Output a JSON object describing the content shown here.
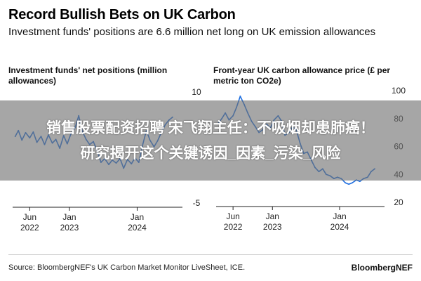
{
  "header": {
    "title": "Record Bullish Bets on UK Carbon",
    "subtitle": "Investment funds' positions are 6.6 million net long on UK emission allowances"
  },
  "overlay": {
    "line1": "销售股票配资招聘 宋飞翔主任：不吸烟却患肺癌！",
    "line2": "研究揭开这个关键诱因_因素_污染_风险"
  },
  "footer": {
    "source": "Source: BloombergNEF's UK Carbon Market Monitor LiveSheet, ICE.",
    "brand": "BloombergNEF"
  },
  "colors": {
    "line": "#1f6fe0",
    "axis": "#222222",
    "grid": "#dddddd"
  },
  "chart_data": [
    {
      "type": "line",
      "title": "Investment funds' net positions (million allowances)",
      "y_axis_side": "right",
      "ylim": [
        -5,
        10
      ],
      "yticks": [
        10,
        -5
      ],
      "xticks": [
        {
          "date": "2022-06-01",
          "label": [
            "Jun",
            "2022"
          ]
        },
        {
          "date": "2023-01-01",
          "label": [
            "Jan",
            "2023"
          ]
        },
        {
          "date": "2024-01-01",
          "label": [
            "Jan",
            "2024"
          ]
        }
      ],
      "xlim": [
        "2022-03-01",
        "2024-09-01"
      ],
      "series": [
        {
          "x": [
            "2022-03-15",
            "2022-04-01",
            "2022-04-20",
            "2022-05-10",
            "2022-06-01",
            "2022-06-20",
            "2022-07-10",
            "2022-08-01",
            "2022-08-20",
            "2022-09-10",
            "2022-10-01",
            "2022-10-20",
            "2022-11-10",
            "2022-12-01",
            "2022-12-20",
            "2023-01-10",
            "2023-02-01",
            "2023-02-20",
            "2023-03-10",
            "2023-04-01",
            "2023-04-20",
            "2023-05-10",
            "2023-06-01",
            "2023-06-20",
            "2023-07-10",
            "2023-08-01",
            "2023-08-20",
            "2023-09-10",
            "2023-10-01",
            "2023-10-20",
            "2023-11-10",
            "2023-12-01",
            "2023-12-20",
            "2024-01-10",
            "2024-02-01",
            "2024-02-20",
            "2024-03-10",
            "2024-04-01",
            "2024-04-20",
            "2024-05-10",
            "2024-06-01",
            "2024-06-20",
            "2024-07-10"
          ],
          "values": [
            4.0,
            4.8,
            3.5,
            4.5,
            3.8,
            4.6,
            3.2,
            4.0,
            2.9,
            4.2,
            3.1,
            3.6,
            2.4,
            4.1,
            3.0,
            4.4,
            5.2,
            6.8,
            4.8,
            3.6,
            2.9,
            3.3,
            2.0,
            0.5,
            1.0,
            0.2,
            0.8,
            0.4,
            1.0,
            -0.3,
            0.9,
            0.3,
            1.1,
            0.5,
            3.0,
            4.8,
            3.5,
            2.6,
            3.4,
            4.5,
            5.6,
            6.2,
            6.6
          ]
        }
      ]
    },
    {
      "type": "line",
      "title": "Front-year UK carbon allowance price (£ per metric ton CO2e)",
      "y_axis_side": "right",
      "ylim": [
        20,
        100
      ],
      "yticks": [
        100,
        80,
        60,
        40,
        20
      ],
      "xticks": [
        {
          "date": "2022-06-01",
          "label": [
            "Jun",
            "2022"
          ]
        },
        {
          "date": "2023-01-01",
          "label": [
            "Jan",
            "2023"
          ]
        },
        {
          "date": "2024-01-01",
          "label": [
            "Jan",
            "2024"
          ]
        }
      ],
      "xlim": [
        "2022-03-01",
        "2024-09-01"
      ],
      "series": [
        {
          "x": [
            "2022-03-15",
            "2022-04-01",
            "2022-04-20",
            "2022-05-10",
            "2022-06-01",
            "2022-06-20",
            "2022-07-10",
            "2022-08-01",
            "2022-08-20",
            "2022-09-10",
            "2022-10-01",
            "2022-10-20",
            "2022-11-10",
            "2022-12-01",
            "2022-12-20",
            "2023-01-10",
            "2023-02-01",
            "2023-02-20",
            "2023-03-10",
            "2023-04-01",
            "2023-04-20",
            "2023-05-10",
            "2023-06-01",
            "2023-06-20",
            "2023-07-10",
            "2023-08-01",
            "2023-08-20",
            "2023-09-10",
            "2023-10-01",
            "2023-10-20",
            "2023-11-10",
            "2023-12-01",
            "2023-12-20",
            "2024-01-10",
            "2024-02-01",
            "2024-02-20",
            "2024-03-10",
            "2024-04-01",
            "2024-04-20",
            "2024-05-10",
            "2024-06-01",
            "2024-06-20",
            "2024-07-10"
          ],
          "values": [
            77,
            80,
            84,
            79,
            82,
            88,
            96,
            90,
            84,
            78,
            74,
            70,
            72,
            76,
            73,
            79,
            82,
            78,
            68,
            70,
            74,
            72,
            62,
            55,
            56,
            50,
            45,
            42,
            44,
            40,
            39,
            37,
            38,
            37,
            34,
            33,
            34,
            36,
            35,
            37,
            38,
            42,
            44
          ]
        }
      ]
    }
  ]
}
